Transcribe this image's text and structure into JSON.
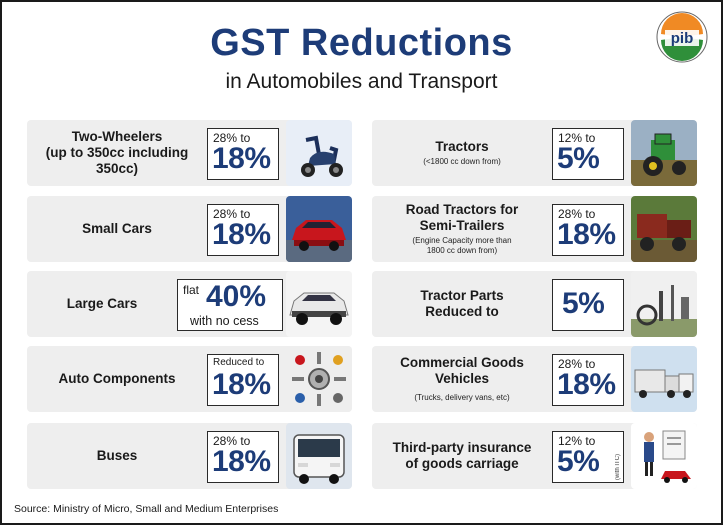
{
  "header": {
    "title": "GST Reductions",
    "subtitle": "in Automobiles and Transport",
    "logo_text": "pib"
  },
  "left": [
    {
      "label": "Two-Wheelers",
      "label2": "(up to 350cc including",
      "label3": "350cc)",
      "from": "28% to",
      "to": "18%",
      "icon": "scooter-icon"
    },
    {
      "label": "Small Cars",
      "from": "28% to",
      "to": "18%",
      "icon": "red-car-icon"
    },
    {
      "label": "Large Cars",
      "flat": "flat",
      "to": "40%",
      "note": "with no cess",
      "icon": "suv-icon"
    },
    {
      "label": "Auto Components",
      "from": "Reduced to",
      "to": "18%",
      "icon": "auto-parts-icon"
    },
    {
      "label": "Buses",
      "from": "28% to",
      "to": "18%",
      "icon": "bus-icon"
    }
  ],
  "right": [
    {
      "label": "Tractors",
      "sub": "(<1800 cc down from)",
      "from": "12% to",
      "to": "5%",
      "icon": "tractor-icon"
    },
    {
      "label": "Road Tractors for",
      "label2": "Semi-Trailers",
      "sub": "(Engine Capacity more than",
      "sub2": "1800 cc down from)",
      "from": "28% to",
      "to": "18%",
      "icon": "road-tractor-icon"
    },
    {
      "label": "Tractor Parts",
      "label2": "Reduced to",
      "to": "5%",
      "icon": "tractor-parts-icon"
    },
    {
      "label": "Commercial Goods",
      "label2": "Vehicles",
      "sub": "(Trucks, delivery vans, etc)",
      "from": "28% to",
      "to": "18%",
      "icon": "trucks-icon"
    },
    {
      "label": "Third-party insurance",
      "label2": "of goods carriage",
      "from": "12% to",
      "to": "5%",
      "vertical": "(with ITC)",
      "icon": "insurance-icon"
    }
  ],
  "footer": {
    "source": "Source: Ministry of Micro, Small and Medium Enterprises"
  },
  "colors": {
    "title": "#1d3c78",
    "card_bg": "#eeeeee",
    "rate_text": "#1d3c78"
  }
}
